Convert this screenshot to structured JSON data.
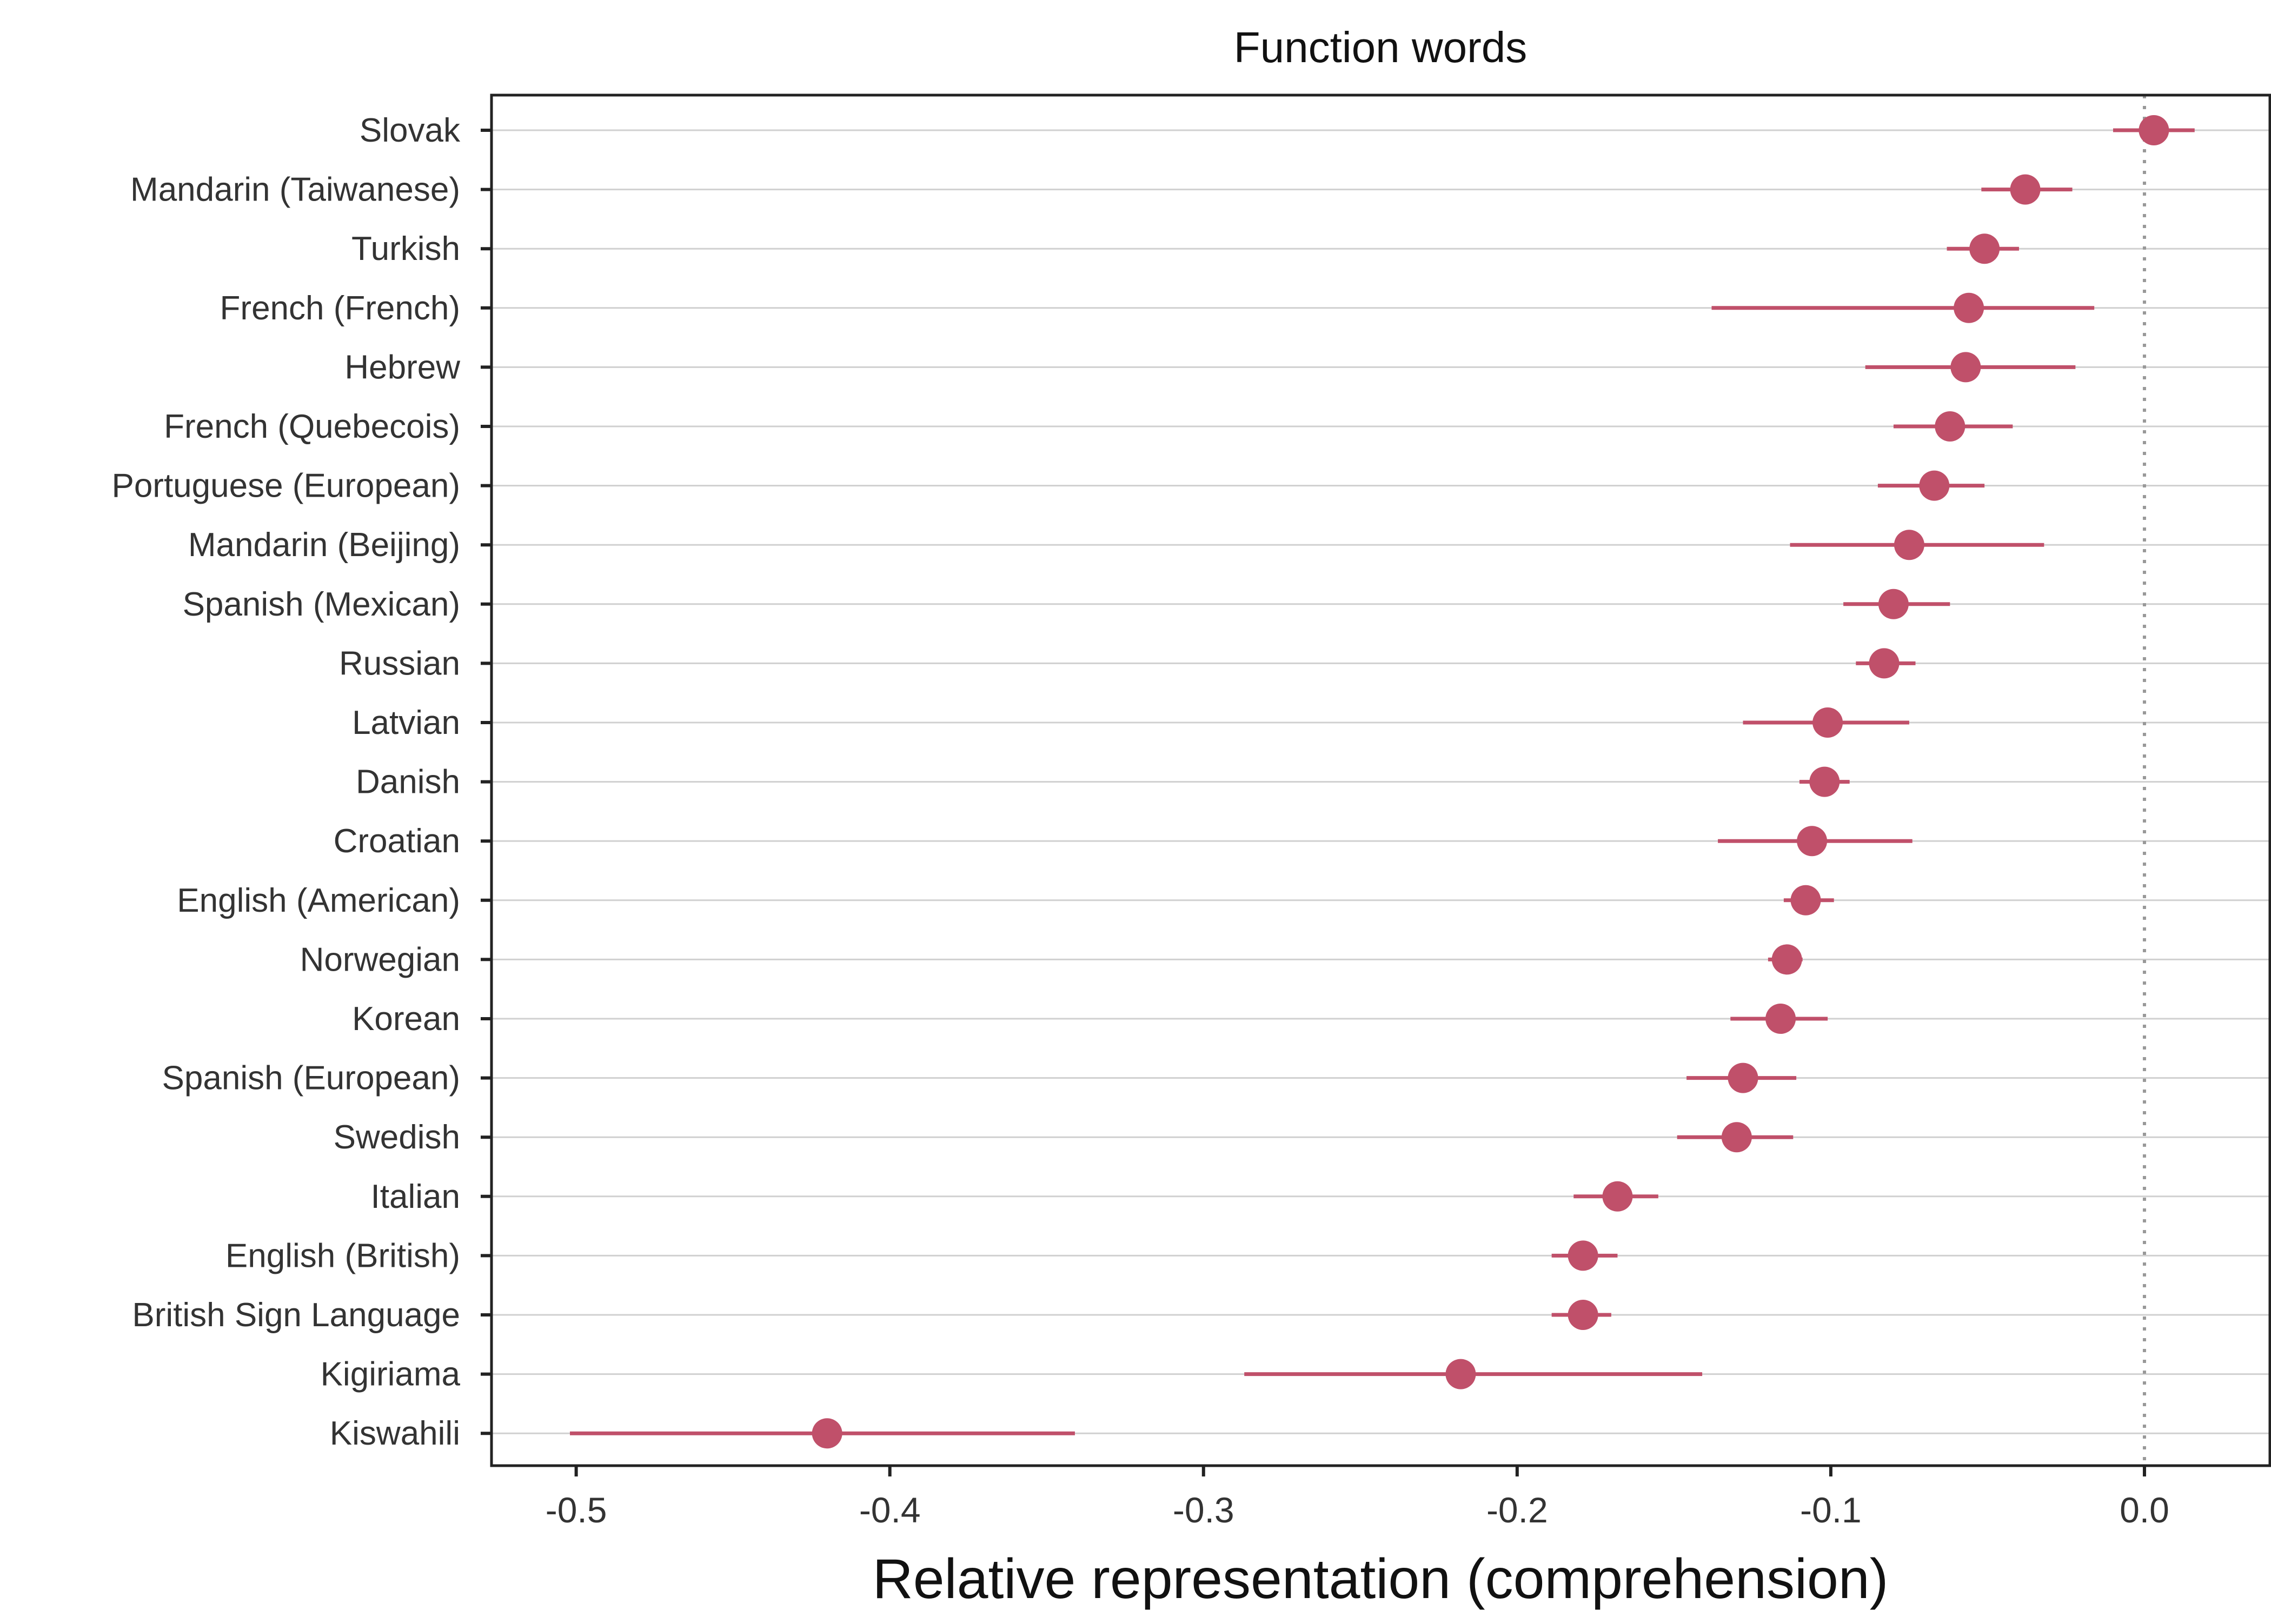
{
  "chart_data": {
    "type": "scatter",
    "subtype": "dot-with-intervals",
    "title": "Function words",
    "xlabel": "Relative representation (comprehension)",
    "ylabel": "",
    "xlim": [
      -0.527,
      0.04
    ],
    "xticks": [
      -0.5,
      -0.4,
      -0.3,
      -0.2,
      -0.1,
      0.0
    ],
    "xtick_labels": [
      "-0.5",
      "-0.4",
      "-0.3",
      "-0.2",
      "-0.1",
      "0.0"
    ],
    "reference_line": {
      "x": 0.0,
      "style": "dotted",
      "color": "#999999"
    },
    "grid": {
      "horizontal": true,
      "vertical": false
    },
    "point_color": "#c0506a",
    "categories": [
      "Slovak",
      "Mandarin (Taiwanese)",
      "Turkish",
      "French (French)",
      "Hebrew",
      "French (Quebecois)",
      "Portuguese (European)",
      "Mandarin (Beijing)",
      "Spanish (Mexican)",
      "Russian",
      "Latvian",
      "Danish",
      "Croatian",
      "English (American)",
      "Norwegian",
      "Korean",
      "Spanish (European)",
      "Swedish",
      "Italian",
      "English (British)",
      "British Sign Language",
      "Kigiriama",
      "Kiswahili"
    ],
    "values": [
      0.003,
      -0.038,
      -0.051,
      -0.056,
      -0.057,
      -0.062,
      -0.067,
      -0.075,
      -0.08,
      -0.083,
      -0.101,
      -0.102,
      -0.106,
      -0.108,
      -0.114,
      -0.116,
      -0.128,
      -0.13,
      -0.168,
      -0.179,
      -0.179,
      -0.218,
      -0.42
    ],
    "lower": [
      -0.01,
      -0.052,
      -0.063,
      -0.138,
      -0.089,
      -0.08,
      -0.085,
      -0.113,
      -0.096,
      -0.092,
      -0.128,
      -0.11,
      -0.136,
      -0.115,
      -0.12,
      -0.132,
      -0.146,
      -0.149,
      -0.182,
      -0.189,
      -0.189,
      -0.287,
      -0.502
    ],
    "upper": [
      0.016,
      -0.023,
      -0.04,
      -0.016,
      -0.022,
      -0.042,
      -0.051,
      -0.032,
      -0.062,
      -0.073,
      -0.075,
      -0.094,
      -0.074,
      -0.099,
      -0.109,
      -0.101,
      -0.111,
      -0.112,
      -0.155,
      -0.168,
      -0.17,
      -0.141,
      -0.341
    ]
  }
}
